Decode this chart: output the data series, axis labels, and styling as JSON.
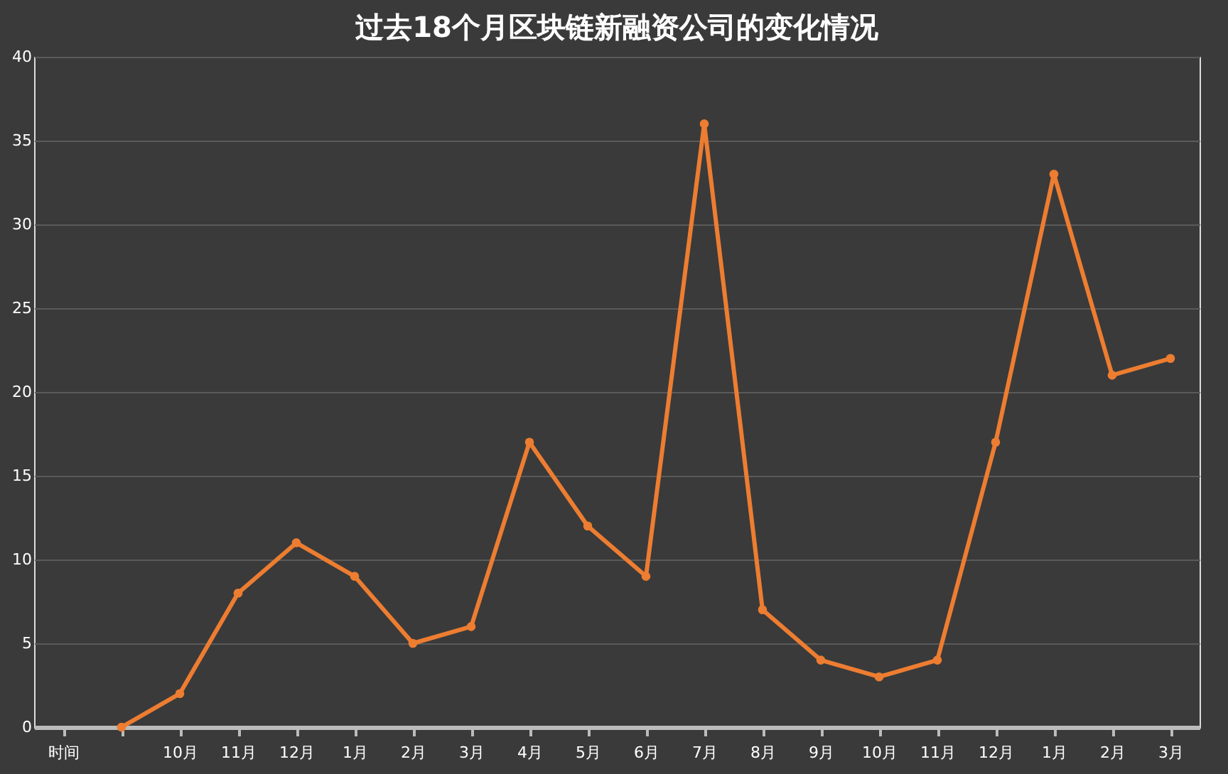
{
  "chart_data": {
    "type": "line",
    "title": "过去18个月区块链新融资公司的变化情况",
    "categories": [
      "时间",
      null,
      "10月",
      "11月",
      "12月",
      "1月",
      "2月",
      "3月",
      "4月",
      "5月",
      "6月",
      "7月",
      "8月",
      "9月",
      "10月",
      "11月",
      "12月",
      "1月",
      "2月",
      "3月"
    ],
    "series": [
      {
        "color": "#ed7d31",
        "values": [
          null,
          0,
          2,
          8,
          11,
          9,
          5,
          6,
          17,
          12,
          9,
          36,
          7,
          4,
          3,
          4,
          17,
          33,
          21,
          22
        ]
      }
    ],
    "ylim": [
      0,
      40
    ],
    "yticks": [
      0,
      5,
      10,
      15,
      20,
      25,
      30,
      35,
      40
    ],
    "grid": "y",
    "marker": "circle",
    "line_style": "solid"
  }
}
